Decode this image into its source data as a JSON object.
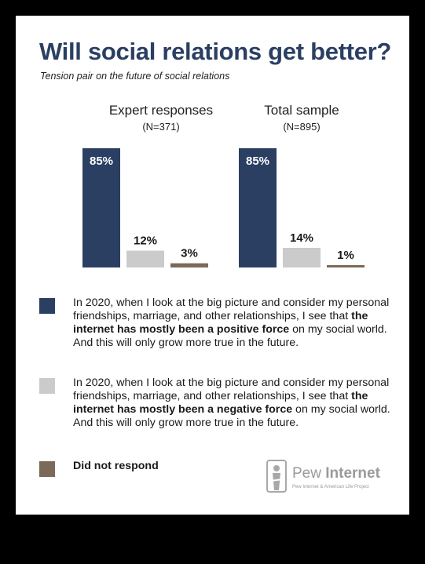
{
  "title": "Will social relations get better?",
  "subtitle": "Tension pair on the future of social relations",
  "colors": {
    "positive": "#2b3f63",
    "negative": "#cbcbcb",
    "no_response": "#7a6a57"
  },
  "chart_data": {
    "type": "bar",
    "title": "Will social relations get better?",
    "subtitle": "Tension pair on the future of social relations",
    "groups": [
      {
        "name": "Expert responses",
        "n": "(N=371)"
      },
      {
        "name": "Total sample",
        "n": "(N=895)"
      }
    ],
    "series": [
      {
        "name": "In 2020, when I look at the big picture and consider my personal friendships, marriage, and other relationships, I see that the internet has mostly been a positive force on my social world. And this will only grow more true in the future.",
        "values": [
          85,
          85
        ],
        "labels": [
          "85%",
          "85%"
        ],
        "color": "#2b3f63"
      },
      {
        "name": "In 2020, when I look at the big picture and consider my personal friendships, marriage, and other relationships, I see that the internet has mostly been a negative force on my social world. And this will only grow more true in the future.",
        "values": [
          12,
          14
        ],
        "labels": [
          "12%",
          "14%"
        ],
        "color": "#cbcbcb"
      },
      {
        "name": "Did not respond",
        "values": [
          3,
          1
        ],
        "labels": [
          "3%",
          "1%"
        ],
        "color": "#7a6a57"
      }
    ],
    "ylim": [
      0,
      85
    ],
    "grid": false,
    "legend": "bottom"
  },
  "legend": [
    {
      "pre": "In 2020, when I look at the big picture and consider my personal friendships, marriage, and other relationships, I see that ",
      "bold": "the internet has mostly been a positive force",
      "post": " on my social world. And this will only grow more true in the future."
    },
    {
      "pre": "In 2020, when I look at the big picture and consider my personal friendships, marriage, and other relationships, I see that ",
      "bold": "the internet has mostly been a negative force",
      "post": " on my social world. And this will only grow more true in the future."
    },
    {
      "pre": "",
      "bold": "Did not respond",
      "post": ""
    }
  ],
  "logo": {
    "name_light": "Pew ",
    "name_bold": "Internet",
    "tagline": "Pew Internet & American Life Project"
  }
}
